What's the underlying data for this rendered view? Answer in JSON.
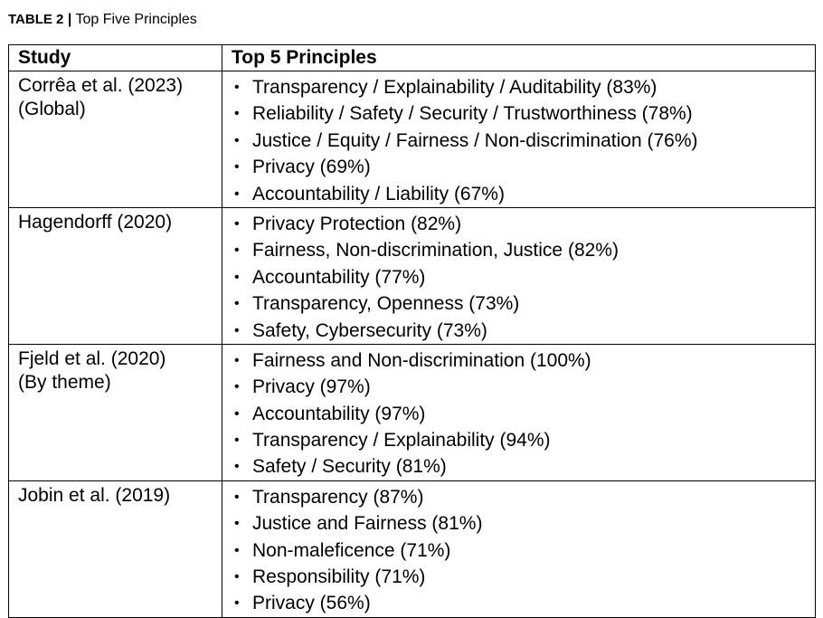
{
  "caption": {
    "label": "TABLE  2",
    "separator": "|",
    "title": "Top Five Principles"
  },
  "table": {
    "headers": [
      "Study",
      "Top 5 Principles"
    ],
    "bullet": "•",
    "rows": [
      {
        "study_lines": [
          "Corrêa et al. (2023)",
          "(Global)"
        ],
        "principles": [
          "Transparency / Explainability / Auditability (83%)",
          "Reliability / Safety / Security / Trustworthiness (78%)",
          "Justice / Equity / Fairness / Non-discrimination (76%)",
          "Privacy (69%)",
          "Accountability / Liability (67%)"
        ]
      },
      {
        "study_lines": [
          "Hagendorff (2020)"
        ],
        "principles": [
          "Privacy Protection (82%)",
          "Fairness, Non-discrimination, Justice (82%)",
          "Accountability (77%)",
          "Transparency, Openness (73%)",
          "Safety, Cybersecurity (73%)"
        ]
      },
      {
        "study_lines": [
          "Fjeld et al. (2020)",
          "(By theme)"
        ],
        "principles": [
          "Fairness and Non-discrimination (100%)",
          "Privacy (97%)",
          "Accountability (97%)",
          "Transparency / Explainability (94%)",
          "Safety / Security (81%)"
        ]
      },
      {
        "study_lines": [
          "Jobin et al. (2019)"
        ],
        "principles": [
          "Transparency (87%)",
          "Justice and Fairness (81%)",
          "Non-maleficence (71%)",
          "Responsibility (71%)",
          "Privacy (56%)"
        ]
      }
    ]
  }
}
